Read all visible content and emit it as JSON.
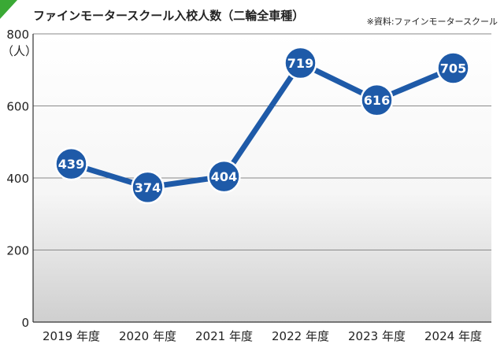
{
  "colors": {
    "accent_green": "#3aa935",
    "line_blue": "#1e5aa8",
    "point_fill": "#1e5aa8",
    "point_stroke": "#ffffff",
    "grid": "#8a8a8a",
    "text": "#222222"
  },
  "chart_data": {
    "type": "line",
    "title": "ファインモータースクール入校人数（二輪全車種）",
    "source": "※資料:ファインモータースクール",
    "ylabel": "（人）",
    "xlabel": "",
    "ylim": [
      0,
      800
    ],
    "yticks": [
      0,
      200,
      400,
      600,
      800
    ],
    "grid": true,
    "categories": [
      "2019 年度",
      "2020 年度",
      "2021 年度",
      "2022 年度",
      "2023 年度",
      "2024 年度"
    ],
    "series": [
      {
        "name": "入校人数",
        "values": [
          439,
          374,
          404,
          719,
          616,
          705
        ]
      }
    ]
  }
}
